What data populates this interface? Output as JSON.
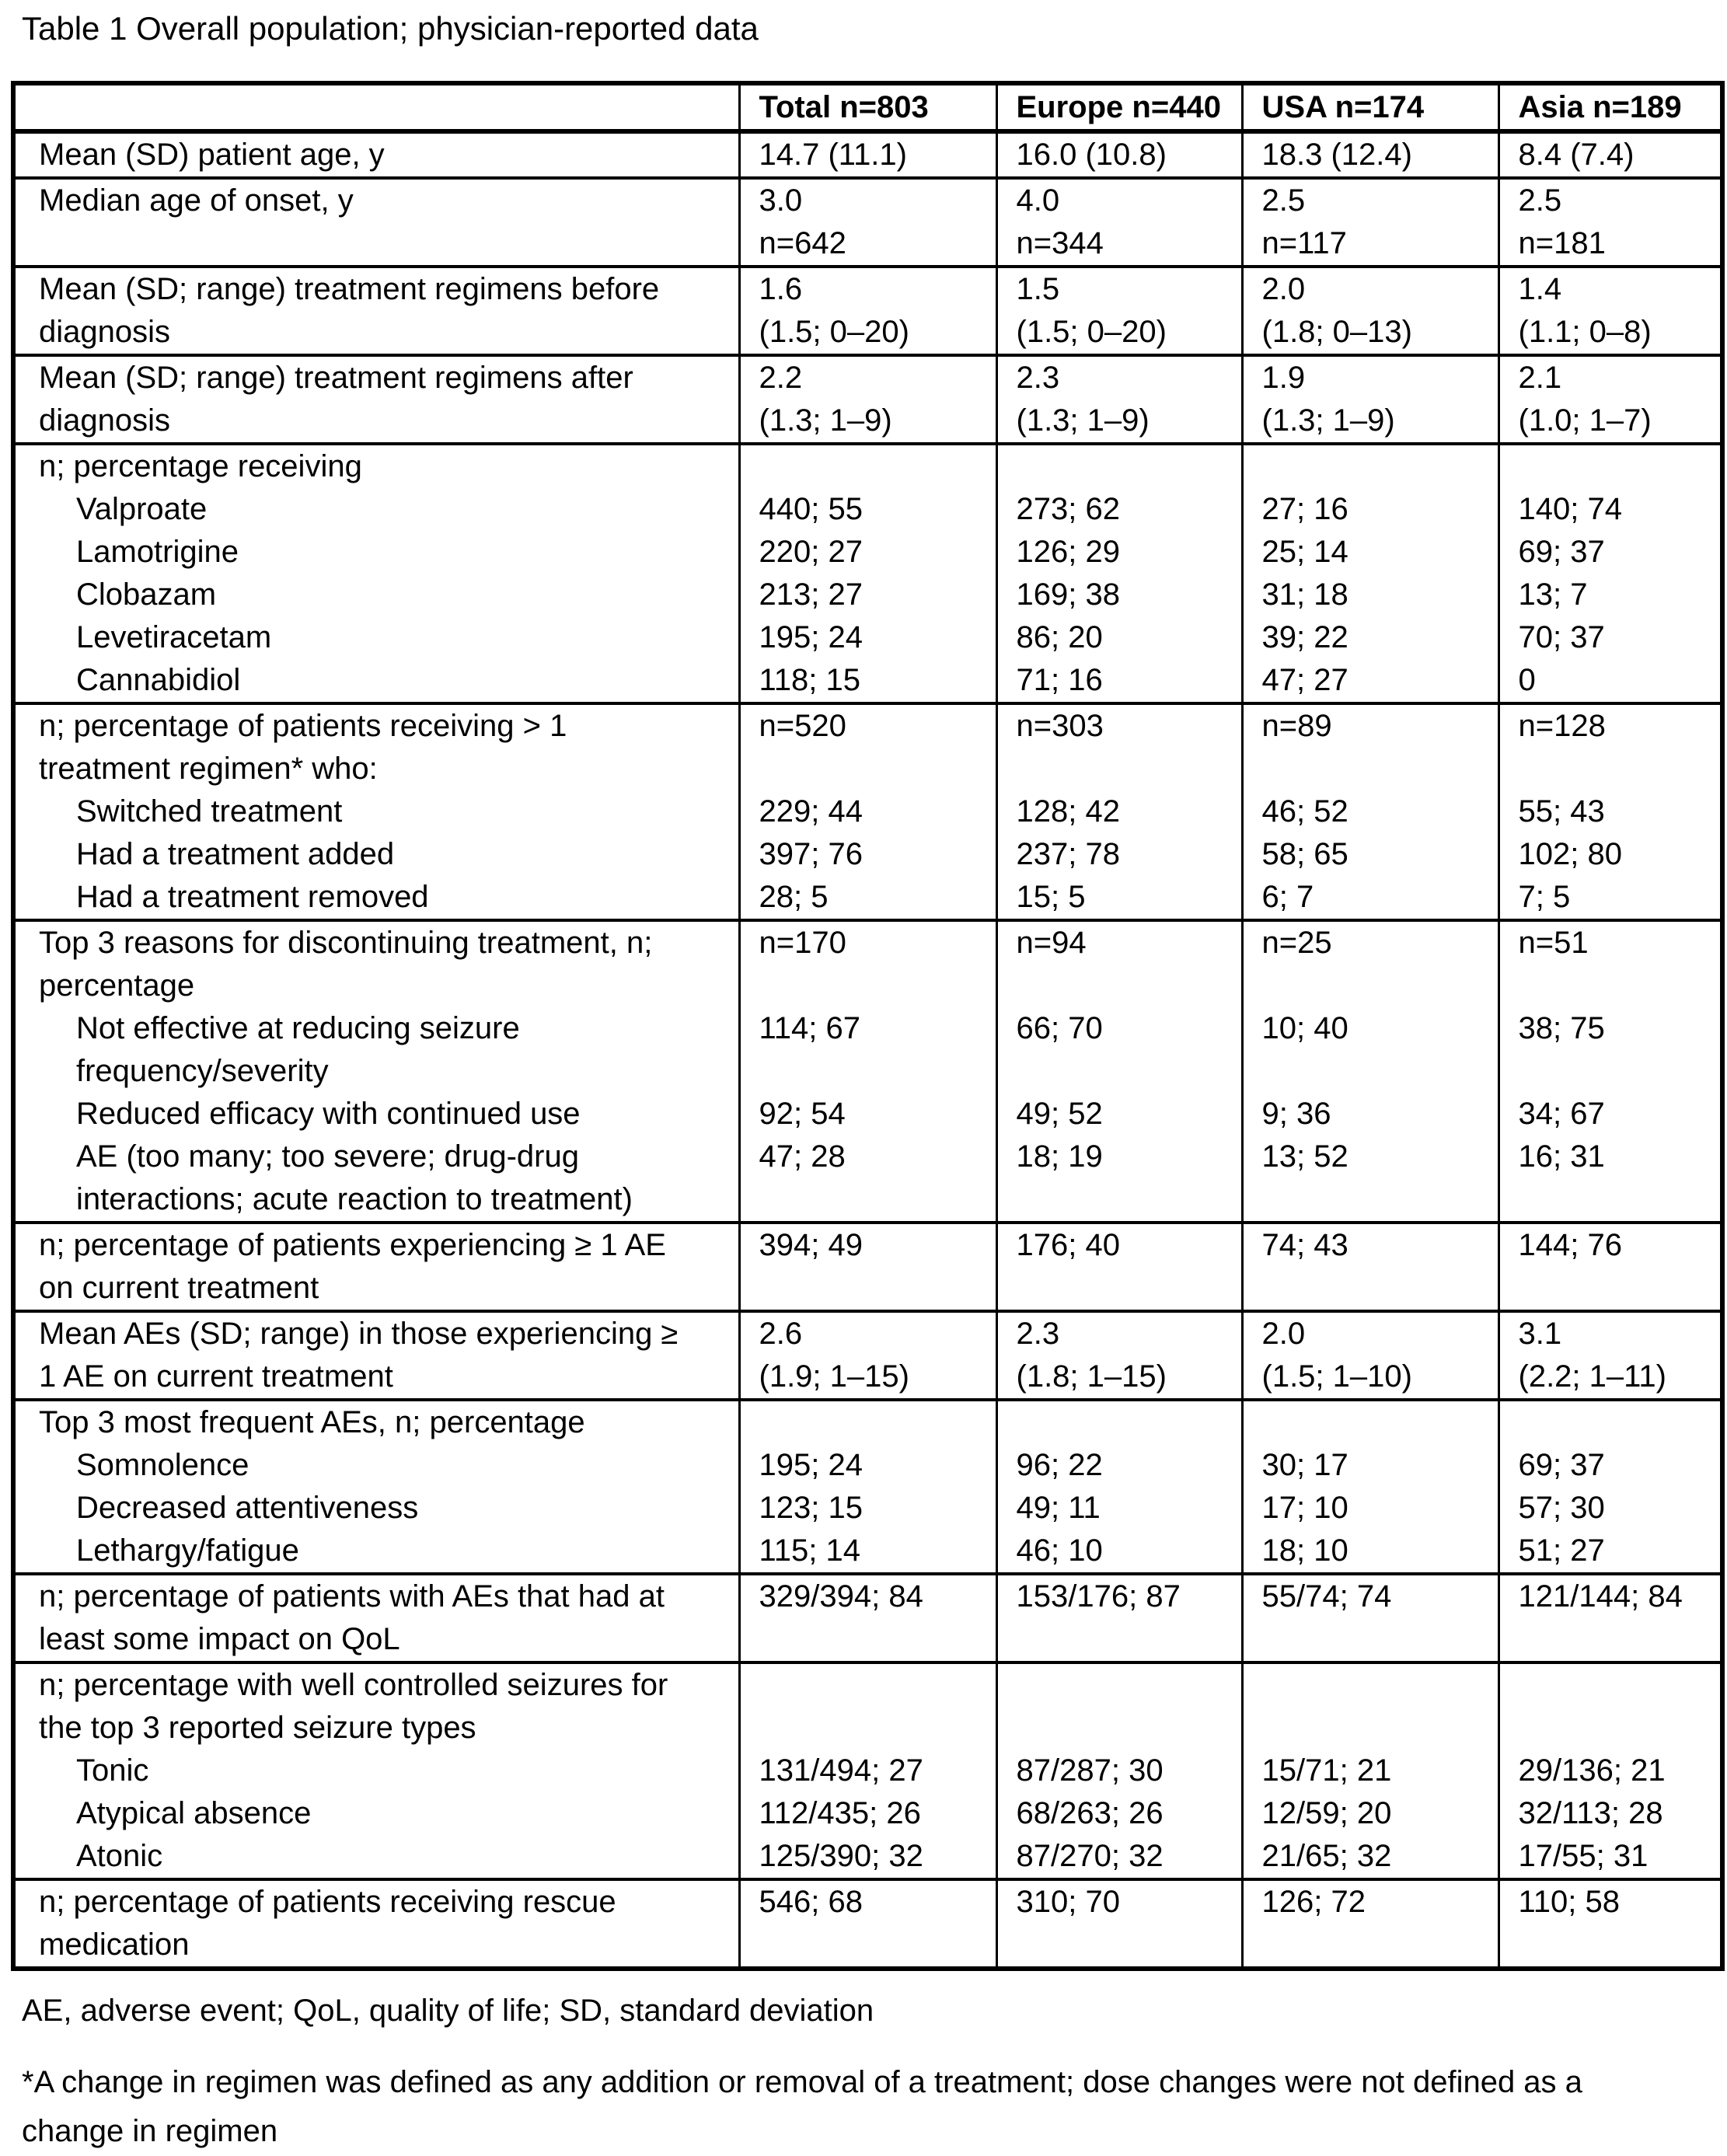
{
  "title": "Table 1 Overall population; physician-reported data",
  "header": [
    "",
    "Total n=803",
    "Europe n=440",
    "USA n=174",
    "Asia n=189"
  ],
  "rows": [
    {
      "label": [
        {
          "text": "Mean (SD) patient age, y",
          "indent": false
        }
      ],
      "cells": [
        [
          "14.7 (11.1)"
        ],
        [
          "16.0 (10.8)"
        ],
        [
          "18.3 (12.4)"
        ],
        [
          "8.4 (7.4)"
        ]
      ]
    },
    {
      "label": [
        {
          "text": "Median age of onset, y",
          "indent": false
        }
      ],
      "cells": [
        [
          "3.0",
          "n=642"
        ],
        [
          "4.0",
          "n=344"
        ],
        [
          "2.5",
          "n=117"
        ],
        [
          "2.5",
          "n=181"
        ]
      ]
    },
    {
      "label": [
        {
          "text": "Mean (SD; range) treatment regimens before",
          "indent": false
        },
        {
          "text": "diagnosis",
          "indent": false
        }
      ],
      "cells": [
        [
          "1.6",
          "(1.5; 0–20)"
        ],
        [
          "1.5",
          "(1.5; 0–20)"
        ],
        [
          "2.0",
          "(1.8; 0–13)"
        ],
        [
          "1.4",
          "(1.1; 0–8)"
        ]
      ]
    },
    {
      "label": [
        {
          "text": "Mean (SD; range) treatment regimens after",
          "indent": false
        },
        {
          "text": "diagnosis",
          "indent": false
        }
      ],
      "cells": [
        [
          "2.2",
          "(1.3; 1–9)"
        ],
        [
          "2.3",
          "(1.3; 1–9)"
        ],
        [
          "1.9",
          "(1.3; 1–9)"
        ],
        [
          "2.1",
          "(1.0; 1–7)"
        ]
      ]
    },
    {
      "label": [
        {
          "text": "n; percentage receiving",
          "indent": false
        },
        {
          "text": "Valproate",
          "indent": true
        },
        {
          "text": "Lamotrigine",
          "indent": true
        },
        {
          "text": "Clobazam",
          "indent": true
        },
        {
          "text": "Levetiracetam",
          "indent": true
        },
        {
          "text": "Cannabidiol",
          "indent": true
        }
      ],
      "cells": [
        [
          "",
          "440; 55",
          "220; 27",
          "213; 27",
          "195; 24",
          "118; 15"
        ],
        [
          "",
          "273; 62",
          "126; 29",
          "169; 38",
          "86; 20",
          "71; 16"
        ],
        [
          "",
          "27; 16",
          "25; 14",
          "31; 18",
          "39; 22",
          "47; 27"
        ],
        [
          "",
          "140; 74",
          "69; 37",
          "13; 7",
          "70; 37",
          "0"
        ]
      ]
    },
    {
      "label": [
        {
          "text": "n; percentage of patients receiving > 1",
          "indent": false
        },
        {
          "text": "treatment regimen* who:",
          "indent": false
        },
        {
          "text": "Switched treatment",
          "indent": true
        },
        {
          "text": "Had a treatment added",
          "indent": true
        },
        {
          "text": "Had a treatment removed",
          "indent": true
        }
      ],
      "cells": [
        [
          "n=520",
          "",
          "229; 44",
          "397; 76",
          "28; 5"
        ],
        [
          "n=303",
          "",
          "128; 42",
          "237; 78",
          "15; 5"
        ],
        [
          "n=89",
          "",
          "46; 52",
          "58; 65",
          "6; 7"
        ],
        [
          "n=128",
          "",
          "55; 43",
          "102; 80",
          "7; 5"
        ]
      ]
    },
    {
      "label": [
        {
          "text": "Top 3 reasons for discontinuing treatment, n;",
          "indent": false
        },
        {
          "text": "percentage",
          "indent": false
        },
        {
          "text": "Not effective at reducing seizure",
          "indent": true
        },
        {
          "text": "frequency/severity",
          "indent": true
        },
        {
          "text": "Reduced efficacy with continued use",
          "indent": true
        },
        {
          "text": "AE (too many; too severe; drug-drug",
          "indent": true
        },
        {
          "text": "interactions; acute reaction to treatment)",
          "indent": true
        }
      ],
      "cells": [
        [
          "n=170",
          "",
          "114; 67",
          "",
          "92; 54",
          "47; 28",
          ""
        ],
        [
          "n=94",
          "",
          "66; 70",
          "",
          "49; 52",
          "18; 19",
          ""
        ],
        [
          "n=25",
          "",
          "10; 40",
          "",
          "9; 36",
          "13; 52",
          ""
        ],
        [
          "n=51",
          "",
          "38; 75",
          "",
          "34; 67",
          "16; 31",
          ""
        ]
      ]
    },
    {
      "label": [
        {
          "text": "n; percentage of patients experiencing ≥ 1 AE",
          "indent": false
        },
        {
          "text": "on current treatment",
          "indent": false
        }
      ],
      "cells": [
        [
          "394; 49"
        ],
        [
          "176; 40"
        ],
        [
          "74; 43"
        ],
        [
          "144; 76"
        ]
      ]
    },
    {
      "label": [
        {
          "text": "Mean AEs (SD; range) in those experiencing ≥",
          "indent": false
        },
        {
          "text": "1 AE on current treatment",
          "indent": false
        }
      ],
      "cells": [
        [
          "2.6",
          "(1.9; 1–15)"
        ],
        [
          "2.3",
          "(1.8; 1–15)"
        ],
        [
          "2.0",
          "(1.5; 1–10)"
        ],
        [
          "3.1",
          "(2.2; 1–11)"
        ]
      ]
    },
    {
      "label": [
        {
          "text": "Top 3 most frequent AEs, n; percentage",
          "indent": false
        },
        {
          "text": "Somnolence",
          "indent": true
        },
        {
          "text": "Decreased attentiveness",
          "indent": true
        },
        {
          "text": "Lethargy/fatigue",
          "indent": true
        }
      ],
      "cells": [
        [
          "",
          "195; 24",
          "123; 15",
          "115; 14"
        ],
        [
          "",
          "96; 22",
          "49; 11",
          "46; 10"
        ],
        [
          "",
          "30; 17",
          "17; 10",
          "18; 10"
        ],
        [
          "",
          "69; 37",
          "57; 30",
          "51; 27"
        ]
      ]
    },
    {
      "label": [
        {
          "text": "n; percentage of patients with AEs that had at",
          "indent": false
        },
        {
          "text": "least some impact on QoL",
          "indent": false
        }
      ],
      "cells": [
        [
          "329/394; 84"
        ],
        [
          "153/176; 87"
        ],
        [
          "55/74; 74"
        ],
        [
          "121/144; 84"
        ]
      ]
    },
    {
      "label": [
        {
          "text": "n; percentage with well controlled seizures for",
          "indent": false
        },
        {
          "text": "the top 3 reported seizure types",
          "indent": false
        },
        {
          "text": "Tonic",
          "indent": true
        },
        {
          "text": "Atypical absence",
          "indent": true
        },
        {
          "text": "Atonic",
          "indent": true
        }
      ],
      "cells": [
        [
          "",
          "",
          "131/494; 27",
          "112/435; 26",
          "125/390; 32"
        ],
        [
          "",
          "",
          "87/287; 30",
          "68/263; 26",
          "87/270; 32"
        ],
        [
          "",
          "",
          "15/71; 21",
          "12/59; 20",
          "21/65; 32"
        ],
        [
          "",
          "",
          "29/136; 21",
          "32/113; 28",
          "17/55; 31"
        ]
      ]
    },
    {
      "label": [
        {
          "text": "n; percentage of patients receiving rescue",
          "indent": false
        },
        {
          "text": "medication",
          "indent": false
        }
      ],
      "cells": [
        [
          "546; 68"
        ],
        [
          "310; 70"
        ],
        [
          "126; 72"
        ],
        [
          "110; 58"
        ]
      ]
    }
  ],
  "footnotes": [
    {
      "lines": [
        "AE, adverse event; QoL, quality of life; SD, standard deviation"
      ]
    },
    {
      "lines": [
        "*A change in regimen was defined as any addition or removal of a treatment; dose changes were not defined as a",
        "change in regimen"
      ]
    }
  ]
}
